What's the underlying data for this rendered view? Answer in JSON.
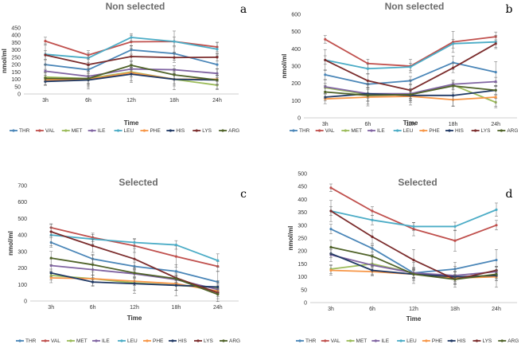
{
  "chart_data": [
    {
      "panel": "a",
      "type": "line",
      "title": "Non selected",
      "xlabel": "Time",
      "ylabel": "nmol/ml",
      "categories": [
        "3h",
        "6h",
        "12h",
        "18h",
        "24h"
      ],
      "ylim": [
        0,
        450
      ],
      "yticks": [
        0,
        50,
        100,
        150,
        200,
        250,
        300,
        350,
        400,
        450
      ],
      "series": [
        {
          "name": "THR",
          "values": [
            200,
            165,
            300,
            275,
            200
          ]
        },
        {
          "name": "VAL",
          "values": [
            360,
            265,
            355,
            357,
            320
          ]
        },
        {
          "name": "MET",
          "values": [
            115,
            105,
            150,
            100,
            60
          ]
        },
        {
          "name": "ILE",
          "values": [
            155,
            120,
            170,
            165,
            140
          ]
        },
        {
          "name": "LEU",
          "values": [
            270,
            245,
            385,
            357,
            305
          ]
        },
        {
          "name": "PHE",
          "values": [
            95,
            100,
            145,
            100,
            100
          ]
        },
        {
          "name": "HIS",
          "values": [
            85,
            95,
            135,
            100,
            95
          ]
        },
        {
          "name": "LYS",
          "values": [
            265,
            200,
            255,
            248,
            250
          ]
        },
        {
          "name": "ARG",
          "values": [
            105,
            105,
            195,
            130,
            95
          ]
        }
      ]
    },
    {
      "panel": "b",
      "type": "line",
      "title": "Non selected",
      "xlabel": "Time",
      "ylabel": "nmol/ml",
      "categories": [
        "3h",
        "6h",
        "12h",
        "18h",
        "24h"
      ],
      "ylim": [
        0,
        600
      ],
      "yticks": [
        0,
        100,
        200,
        300,
        400,
        500,
        600
      ],
      "series": [
        {
          "name": "THR",
          "values": [
            250,
            195,
            215,
            320,
            265
          ]
        },
        {
          "name": "VAL",
          "values": [
            455,
            315,
            300,
            440,
            470
          ]
        },
        {
          "name": "MET",
          "values": [
            175,
            135,
            135,
            190,
            90
          ]
        },
        {
          "name": "ILE",
          "values": [
            180,
            140,
            140,
            195,
            210
          ]
        },
        {
          "name": "LEU",
          "values": [
            335,
            285,
            295,
            430,
            440
          ]
        },
        {
          "name": "PHE",
          "values": [
            110,
            120,
            125,
            105,
            120
          ]
        },
        {
          "name": "HIS",
          "values": [
            120,
            140,
            130,
            130,
            160
          ]
        },
        {
          "name": "LYS",
          "values": [
            335,
            215,
            160,
            290,
            430
          ]
        },
        {
          "name": "ARG",
          "values": [
            150,
            130,
            135,
            185,
            160
          ]
        }
      ]
    },
    {
      "panel": "c",
      "type": "line",
      "title": "Selected",
      "xlabel": "Time",
      "ylabel": "nmol/ml",
      "categories": [
        "3h",
        "6h",
        "12h",
        "18h",
        "24h"
      ],
      "ylim": [
        0,
        700
      ],
      "yticks": [
        0,
        100,
        200,
        300,
        400,
        500,
        600,
        700
      ],
      "series": [
        {
          "name": "THR",
          "values": [
            355,
            255,
            210,
            180,
            115
          ]
        },
        {
          "name": "VAL",
          "values": [
            445,
            385,
            335,
            270,
            210
          ]
        },
        {
          "name": "MET",
          "values": [
            155,
            135,
            110,
            95,
            80
          ]
        },
        {
          "name": "ILE",
          "values": [
            215,
            190,
            165,
            130,
            70
          ]
        },
        {
          "name": "LEU",
          "values": [
            400,
            375,
            355,
            340,
            245
          ]
        },
        {
          "name": "PHE",
          "values": [
            140,
            135,
            120,
            105,
            60
          ]
        },
        {
          "name": "HIS",
          "values": [
            170,
            115,
            105,
            95,
            85
          ]
        },
        {
          "name": "LYS",
          "values": [
            420,
            335,
            255,
            140,
            50
          ]
        },
        {
          "name": "ARG",
          "values": [
            260,
            220,
            170,
            135,
            40
          ]
        }
      ]
    },
    {
      "panel": "d",
      "type": "line",
      "title": "Selected",
      "xlabel": "Time",
      "ylabel": "nmol/ml",
      "categories": [
        "3h",
        "6h",
        "12h",
        "18h",
        "24h"
      ],
      "ylim": [
        0,
        500
      ],
      "yticks": [
        0,
        50,
        100,
        150,
        200,
        250,
        300,
        350,
        400,
        450,
        500
      ],
      "series": [
        {
          "name": "THR",
          "values": [
            285,
            210,
            115,
            130,
            165
          ]
        },
        {
          "name": "VAL",
          "values": [
            445,
            355,
            285,
            240,
            300
          ]
        },
        {
          "name": "MET",
          "values": [
            130,
            150,
            115,
            100,
            100
          ]
        },
        {
          "name": "ILE",
          "values": [
            185,
            145,
            115,
            105,
            120
          ]
        },
        {
          "name": "LEU",
          "values": [
            355,
            320,
            295,
            295,
            360
          ]
        },
        {
          "name": "PHE",
          "values": [
            125,
            120,
            110,
            95,
            100
          ]
        },
        {
          "name": "HIS",
          "values": [
            190,
            125,
            110,
            100,
            105
          ]
        },
        {
          "name": "LYS",
          "values": [
            355,
            255,
            165,
            90,
            125
          ]
        },
        {
          "name": "ARG",
          "values": [
            215,
            180,
            110,
            90,
            110
          ]
        }
      ]
    }
  ],
  "series_colors": {
    "THR": "#4a86b8",
    "VAL": "#c0504d",
    "MET": "#9bbb59",
    "ILE": "#8064a2",
    "LEU": "#4bacc6",
    "PHE": "#f79646",
    "HIS": "#1f3864",
    "LYS": "#7b2c2c",
    "ARG": "#4f6228"
  }
}
